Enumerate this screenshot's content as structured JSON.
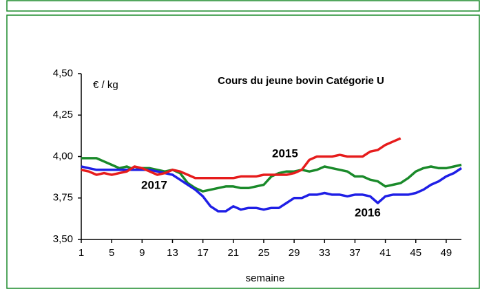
{
  "chart_data": {
    "type": "line",
    "title": "Cours du jeune bovin Catégorie U",
    "ylabel": "€ / kg",
    "xlabel": "semaine",
    "x": [
      1,
      2,
      3,
      4,
      5,
      6,
      7,
      8,
      9,
      10,
      11,
      12,
      13,
      14,
      15,
      16,
      17,
      18,
      19,
      20,
      21,
      22,
      23,
      24,
      25,
      26,
      27,
      28,
      29,
      30,
      31,
      32,
      33,
      34,
      35,
      36,
      37,
      38,
      39,
      40,
      41,
      42,
      43,
      44,
      45,
      46,
      47,
      48,
      49,
      50,
      51
    ],
    "xlim": [
      1,
      51
    ],
    "xticks": [
      1,
      5,
      9,
      13,
      17,
      21,
      25,
      29,
      33,
      37,
      41,
      45,
      49
    ],
    "ylim": [
      3.5,
      4.5
    ],
    "yticks": [
      {
        "value": 3.5,
        "label": "3,50"
      },
      {
        "value": 3.75,
        "label": "3,75"
      },
      {
        "value": 4.0,
        "label": "4,00"
      },
      {
        "value": 4.25,
        "label": "4,25"
      },
      {
        "value": 4.5,
        "label": "4,50"
      }
    ],
    "series": [
      {
        "name": "2015",
        "color": "#1a8a2a",
        "values": [
          3.99,
          3.99,
          3.99,
          3.97,
          3.95,
          3.93,
          3.94,
          3.92,
          3.93,
          3.93,
          3.92,
          3.91,
          3.92,
          3.9,
          3.84,
          3.81,
          3.79,
          3.8,
          3.81,
          3.82,
          3.82,
          3.81,
          3.81,
          3.82,
          3.83,
          3.88,
          3.9,
          3.91,
          3.91,
          3.92,
          3.91,
          3.92,
          3.94,
          3.93,
          3.92,
          3.91,
          3.88,
          3.88,
          3.86,
          3.85,
          3.82,
          3.83,
          3.84,
          3.87,
          3.91,
          3.93,
          3.94,
          3.93,
          3.93,
          3.94,
          3.95
        ]
      },
      {
        "name": "2016",
        "color": "#1f1fe6",
        "values": [
          3.94,
          3.93,
          3.92,
          3.92,
          3.92,
          3.92,
          3.92,
          3.92,
          3.92,
          3.92,
          3.91,
          3.9,
          3.89,
          3.86,
          3.83,
          3.8,
          3.76,
          3.7,
          3.67,
          3.67,
          3.7,
          3.68,
          3.69,
          3.69,
          3.68,
          3.69,
          3.69,
          3.72,
          3.75,
          3.75,
          3.77,
          3.77,
          3.78,
          3.77,
          3.77,
          3.76,
          3.77,
          3.77,
          3.76,
          3.72,
          3.76,
          3.77,
          3.77,
          3.77,
          3.78,
          3.8,
          3.83,
          3.85,
          3.88,
          3.9,
          3.93
        ]
      },
      {
        "name": "2017",
        "color": "#e61c1c",
        "values": [
          3.92,
          3.91,
          3.89,
          3.9,
          3.89,
          3.9,
          3.91,
          3.94,
          3.93,
          3.91,
          3.89,
          3.9,
          3.92,
          3.91,
          3.89,
          3.87,
          3.87,
          3.87,
          3.87,
          3.87,
          3.87,
          3.88,
          3.88,
          3.88,
          3.89,
          3.89,
          3.89,
          3.89,
          3.9,
          3.92,
          3.98,
          4.0,
          4.0,
          4.0,
          4.01,
          4.0,
          4.0,
          4.0,
          4.03,
          4.04,
          4.07,
          4.09,
          4.11,
          null,
          null,
          null,
          null,
          null,
          null,
          null,
          null
        ]
      }
    ]
  }
}
